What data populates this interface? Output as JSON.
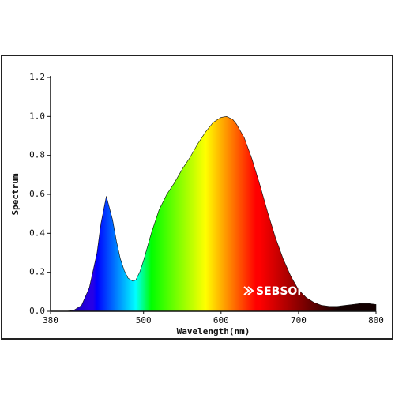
{
  "chart_data": {
    "type": "area",
    "ylabel": "Spectrum",
    "xlabel": "Wavelength(nm)",
    "brand": "SEBSON",
    "x": [
      380,
      400,
      410,
      420,
      430,
      440,
      445,
      452,
      460,
      465,
      470,
      475,
      480,
      486,
      490,
      495,
      500,
      510,
      520,
      530,
      540,
      550,
      560,
      570,
      580,
      590,
      600,
      607,
      615,
      620,
      630,
      640,
      650,
      660,
      670,
      680,
      690,
      700,
      710,
      720,
      730,
      740,
      750,
      760,
      770,
      780,
      790,
      800
    ],
    "values": [
      0,
      0,
      0.005,
      0.03,
      0.12,
      0.3,
      0.45,
      0.59,
      0.47,
      0.36,
      0.27,
      0.21,
      0.17,
      0.155,
      0.16,
      0.2,
      0.26,
      0.4,
      0.52,
      0.6,
      0.66,
      0.73,
      0.79,
      0.86,
      0.92,
      0.97,
      0.995,
      1.0,
      0.985,
      0.96,
      0.89,
      0.78,
      0.65,
      0.51,
      0.38,
      0.27,
      0.18,
      0.11,
      0.07,
      0.045,
      0.03,
      0.025,
      0.025,
      0.03,
      0.035,
      0.04,
      0.04,
      0.035
    ],
    "xlim": [
      380,
      800
    ],
    "ylim": [
      0,
      1.2
    ],
    "xticks": [
      380,
      500,
      600,
      700,
      800
    ],
    "yticks": [
      {
        "value": 0,
        "label": "0.0"
      },
      0.2,
      0.4,
      0.6,
      0.8,
      {
        "value": 1,
        "label": "1.0"
      },
      1.2
    ]
  }
}
